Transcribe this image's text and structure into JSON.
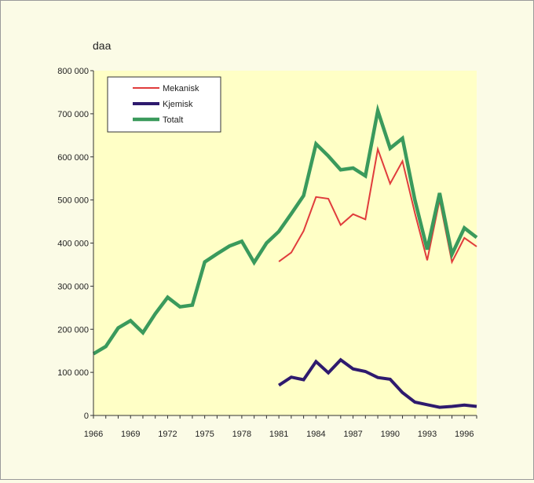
{
  "chart_data": {
    "type": "line",
    "unit_label": "daa",
    "ylim": [
      0,
      800000
    ],
    "xlim": [
      1966,
      1997
    ],
    "y_ticks": [
      0,
      100000,
      200000,
      300000,
      400000,
      500000,
      600000,
      700000,
      800000
    ],
    "y_tick_labels": [
      "0",
      "100 000",
      "200 000",
      "300 000",
      "400 000",
      "500 000",
      "600 000",
      "700 000",
      "800 000"
    ],
    "x_ticks": [
      1966,
      1969,
      1972,
      1975,
      1978,
      1981,
      1984,
      1987,
      1990,
      1993,
      1996
    ],
    "x_tick_labels": [
      "1966",
      "1969",
      "1972",
      "1975",
      "1978",
      "1981",
      "1984",
      "1987",
      "1990",
      "1993",
      "1996"
    ],
    "grid": false,
    "legend_position": "top-left",
    "series": [
      {
        "name": "Mekanisk",
        "color": "#e03c3c",
        "width": 2,
        "x": [
          1981,
          1982,
          1983,
          1984,
          1985,
          1986,
          1987,
          1988,
          1989,
          1990,
          1991,
          1992,
          1993,
          1994,
          1995,
          1996,
          1997
        ],
        "y": [
          357000,
          378000,
          428000,
          507000,
          503000,
          442000,
          467000,
          455000,
          618000,
          538000,
          590000,
          470000,
          360000,
          500000,
          356000,
          412000,
          392000
        ]
      },
      {
        "name": "Kjemisk",
        "color": "#2e1a6e",
        "width": 4,
        "x": [
          1981,
          1982,
          1983,
          1984,
          1985,
          1986,
          1987,
          1988,
          1989,
          1990,
          1991,
          1992,
          1993,
          1994,
          1995,
          1996,
          1997
        ],
        "y": [
          70000,
          89000,
          83000,
          125000,
          99000,
          129000,
          108000,
          102000,
          88000,
          84000,
          53000,
          31000,
          25000,
          19000,
          21000,
          24000,
          21000
        ]
      },
      {
        "name": "Totalt",
        "color": "#3a9a5c",
        "width": 4.5,
        "x": [
          1966,
          1967,
          1968,
          1969,
          1970,
          1971,
          1972,
          1973,
          1974,
          1975,
          1976,
          1977,
          1978,
          1979,
          1980,
          1981,
          1982,
          1983,
          1984,
          1985,
          1986,
          1987,
          1988,
          1989,
          1990,
          1991,
          1992,
          1993,
          1994,
          1995,
          1996,
          1997
        ],
        "y": [
          143000,
          160000,
          203000,
          220000,
          192000,
          236000,
          274000,
          252000,
          256000,
          356000,
          375000,
          393000,
          404000,
          355000,
          400000,
          427000,
          468000,
          510000,
          630000,
          602000,
          570000,
          574000,
          556000,
          707000,
          620000,
          643000,
          500000,
          385000,
          516000,
          374000,
          435000,
          413000
        ]
      }
    ]
  }
}
